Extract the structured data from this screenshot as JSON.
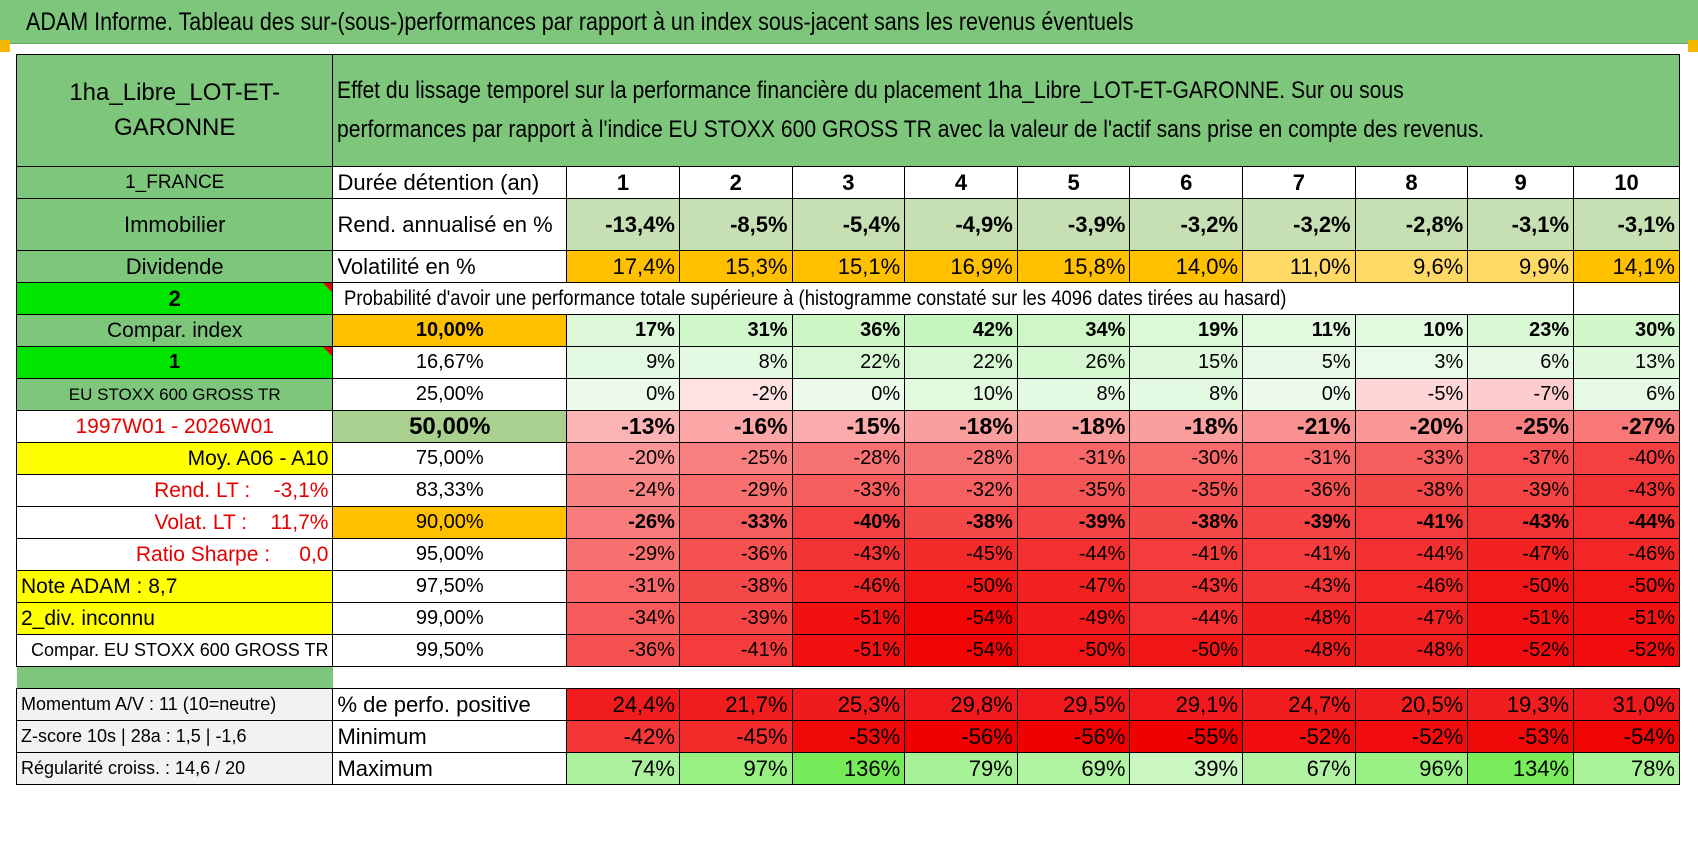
{
  "title": "ADAM Informe. Tableau des sur-(sous-)performances par rapport à un index sous-jacent sans les revenus éventuels",
  "header": {
    "asset_name": "1ha_Libre_LOT-ET-GARONNE",
    "description": "Effet du lissage temporel sur la performance financière du placement 1ha_Libre_LOT-ET-GARONNE. Sur ou sous performances par rapport à l'indice EU STOXX 600 GROSS TR avec la valeur de l'actif sans prise en compte des revenus."
  },
  "sidebar": {
    "country": "1_FRANCE",
    "category": "Immobilier",
    "type": "Dividende",
    "flag1": "2",
    "compar_label": "Compar. index",
    "flag2": "1",
    "index_name": "EU STOXX 600 GROSS TR",
    "period": "1997W01 - 2026W01",
    "moy": "Moy. A06 - A10",
    "rend_lt": "Rend. LT :    -3,1%",
    "volat_lt": "Volat. LT :    11,7%",
    "sharpe": "Ratio Sharpe :     0,0",
    "note": "Note ADAM : 8,7",
    "div": "2_div. inconnu",
    "compar_full": "Compar. EU STOXX 600 GROSS TR"
  },
  "rows": {
    "duration_label": "Durée détention (an)",
    "durations": [
      "1",
      "2",
      "3",
      "4",
      "5",
      "6",
      "7",
      "8",
      "9",
      "10"
    ],
    "rend_label": "Rend. annualisé en %",
    "rend": [
      "-13,4%",
      "-8,5%",
      "-5,4%",
      "-4,9%",
      "-3,9%",
      "-3,2%",
      "-3,2%",
      "-2,8%",
      "-3,1%",
      "-3,1%"
    ],
    "vol_label": "Volatilité en %",
    "vol": [
      "17,4%",
      "15,3%",
      "15,1%",
      "16,9%",
      "15,8%",
      "14,0%",
      "11,0%",
      "9,6%",
      "9,9%",
      "14,1%"
    ],
    "prob_label": "Probabilité d'avoir une performance totale supérieure à (histogramme constaté sur les 4096 dates tirées au hasard)"
  },
  "quantiles": [
    {
      "q": "10,00%",
      "v": [
        "17%",
        "31%",
        "36%",
        "42%",
        "34%",
        "19%",
        "11%",
        "10%",
        "23%",
        "30%"
      ]
    },
    {
      "q": "16,67%",
      "v": [
        "9%",
        "8%",
        "22%",
        "22%",
        "26%",
        "15%",
        "5%",
        "3%",
        "6%",
        "13%"
      ]
    },
    {
      "q": "25,00%",
      "v": [
        "0%",
        "-2%",
        "0%",
        "10%",
        "8%",
        "8%",
        "0%",
        "-5%",
        "-7%",
        "6%"
      ]
    },
    {
      "q": "50,00%",
      "v": [
        "-13%",
        "-16%",
        "-15%",
        "-18%",
        "-18%",
        "-18%",
        "-21%",
        "-20%",
        "-25%",
        "-27%"
      ]
    },
    {
      "q": "75,00%",
      "v": [
        "-20%",
        "-25%",
        "-28%",
        "-28%",
        "-31%",
        "-30%",
        "-31%",
        "-33%",
        "-37%",
        "-40%"
      ]
    },
    {
      "q": "83,33%",
      "v": [
        "-24%",
        "-29%",
        "-33%",
        "-32%",
        "-35%",
        "-35%",
        "-36%",
        "-38%",
        "-39%",
        "-43%"
      ]
    },
    {
      "q": "90,00%",
      "v": [
        "-26%",
        "-33%",
        "-40%",
        "-38%",
        "-39%",
        "-38%",
        "-39%",
        "-41%",
        "-43%",
        "-44%"
      ]
    },
    {
      "q": "95,00%",
      "v": [
        "-29%",
        "-36%",
        "-43%",
        "-45%",
        "-44%",
        "-41%",
        "-41%",
        "-44%",
        "-47%",
        "-46%"
      ]
    },
    {
      "q": "97,50%",
      "v": [
        "-31%",
        "-38%",
        "-46%",
        "-50%",
        "-47%",
        "-43%",
        "-43%",
        "-46%",
        "-50%",
        "-50%"
      ]
    },
    {
      "q": "99,00%",
      "v": [
        "-34%",
        "-39%",
        "-51%",
        "-54%",
        "-49%",
        "-44%",
        "-48%",
        "-47%",
        "-51%",
        "-51%"
      ]
    },
    {
      "q": "99,50%",
      "v": [
        "-36%",
        "-41%",
        "-51%",
        "-54%",
        "-50%",
        "-50%",
        "-48%",
        "-48%",
        "-52%",
        "-52%"
      ]
    }
  ],
  "bottom": [
    {
      "side": "Momentum A/V : 11 (10=neutre)",
      "label": "% de perfo. positive",
      "v": [
        "24,4%",
        "21,7%",
        "25,3%",
        "29,8%",
        "29,5%",
        "29,1%",
        "24,7%",
        "20,5%",
        "19,3%",
        "31,0%"
      ]
    },
    {
      "side": "Z-score 10s | 28a : 1,5 | -1,6",
      "label": "Minimum",
      "v": [
        "-42%",
        "-45%",
        "-53%",
        "-56%",
        "-56%",
        "-55%",
        "-52%",
        "-52%",
        "-53%",
        "-54%"
      ]
    },
    {
      "side": "Régularité croiss. : 14,6 / 20",
      "label": "Maximum",
      "v": [
        "74%",
        "97%",
        "136%",
        "79%",
        "69%",
        "39%",
        "67%",
        "96%",
        "134%",
        "78%"
      ]
    }
  ],
  "colors": {
    "title_green": "#7dc67c",
    "yellow": "#ffff00",
    "orange": "#ffc000",
    "lime": "#00e400",
    "label_red": "#e60000"
  }
}
